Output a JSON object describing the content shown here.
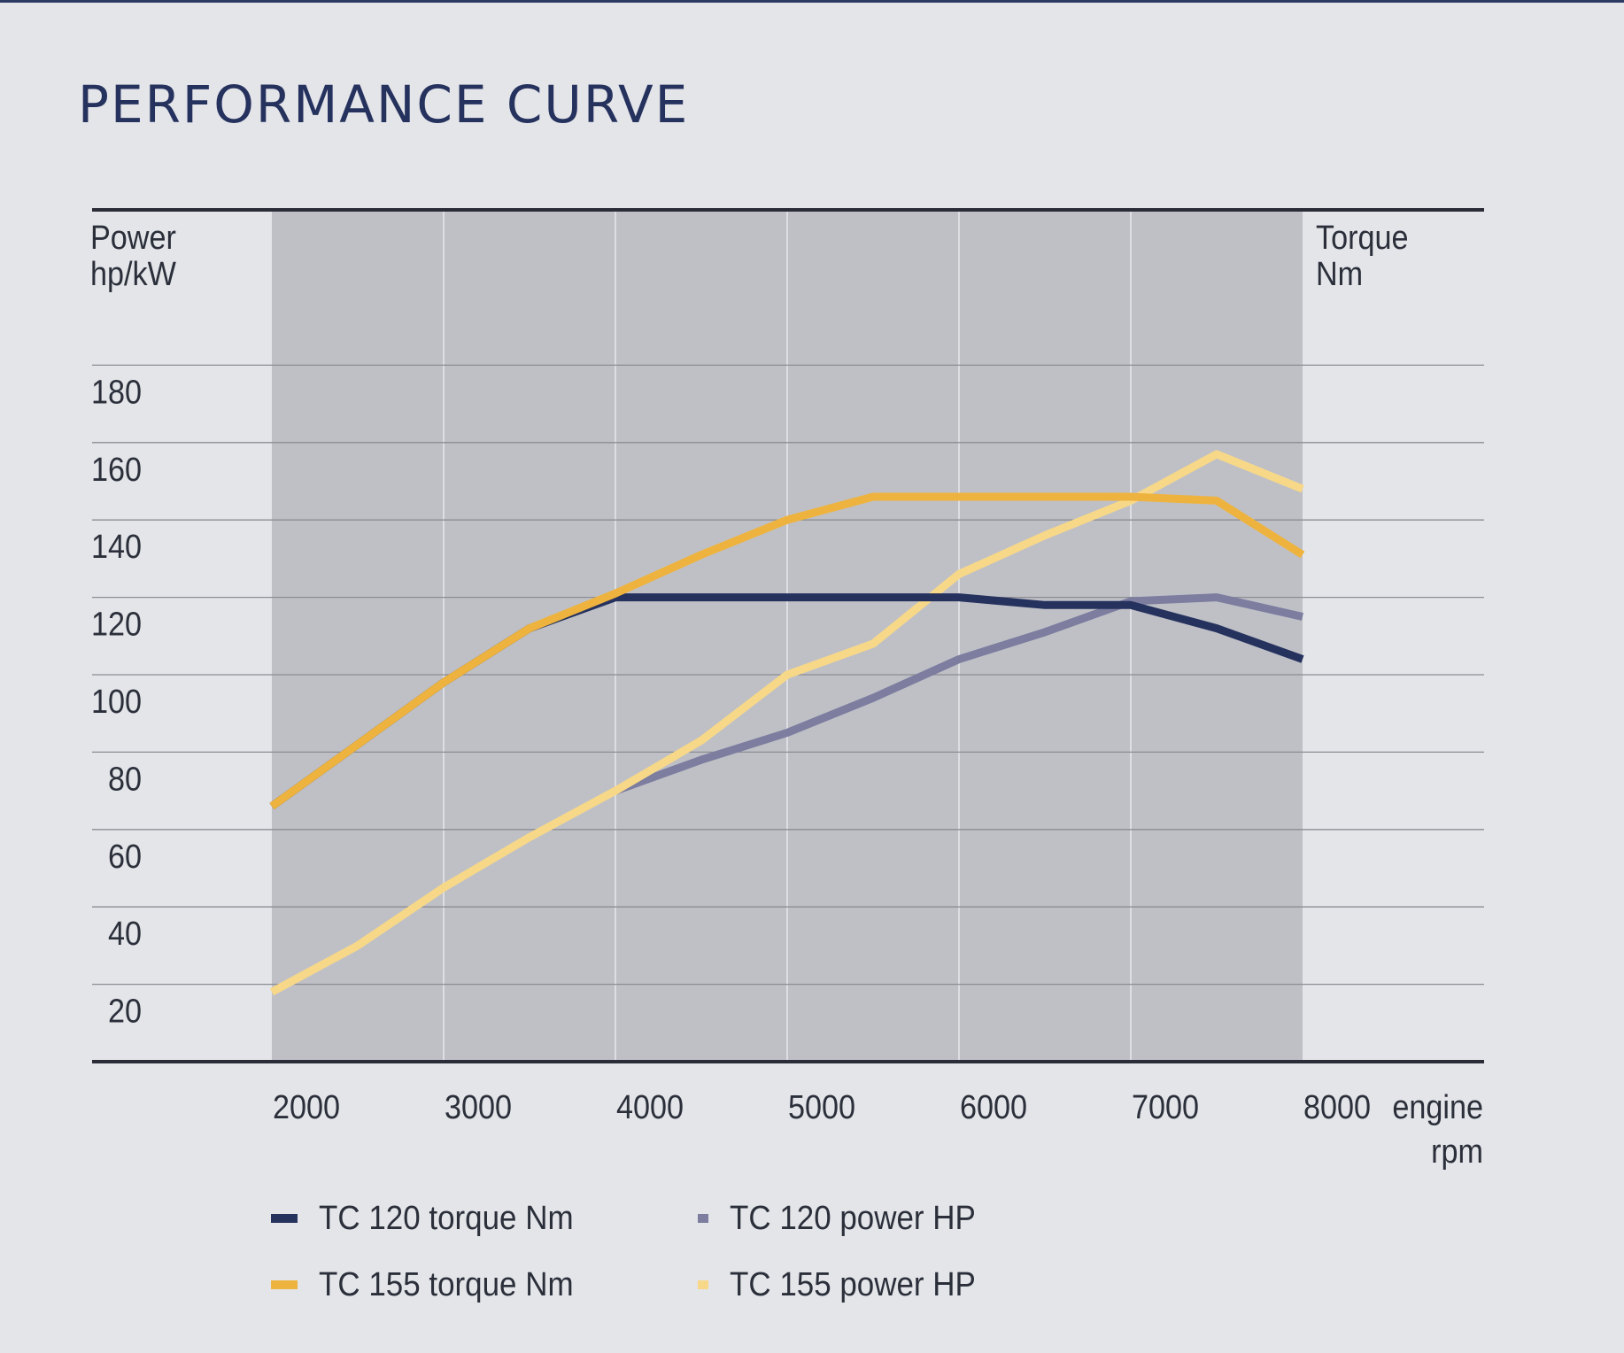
{
  "page": {
    "title": "PERFORMANCE CURVE"
  },
  "chart_data": {
    "type": "line",
    "title": "PERFORMANCE CURVE",
    "left_axis_label": [
      "Power",
      "hp/kW"
    ],
    "right_axis_label": [
      "Torque",
      "Nm"
    ],
    "x_axis_label": [
      "engine",
      "rpm"
    ],
    "x_ticks": [
      2000,
      3000,
      4000,
      5000,
      6000,
      7000,
      8000
    ],
    "y_ticks": [
      20,
      40,
      60,
      80,
      100,
      120,
      140,
      160,
      180
    ],
    "xlim": [
      2000,
      9000
    ],
    "ylim": [
      0,
      200
    ],
    "shaded_x_range": [
      2000,
      8000
    ],
    "grid": true,
    "legend_position": "bottom",
    "series": [
      {
        "name": "TC 120 torque Nm",
        "color": "#26325e",
        "points": [
          [
            2000,
            66
          ],
          [
            2500,
            82
          ],
          [
            3000,
            98
          ],
          [
            3500,
            112
          ],
          [
            4000,
            120
          ],
          [
            4500,
            120
          ],
          [
            5000,
            120
          ],
          [
            5500,
            120
          ],
          [
            6000,
            120
          ],
          [
            6500,
            118
          ],
          [
            7000,
            118
          ],
          [
            7500,
            112
          ],
          [
            8000,
            104
          ]
        ]
      },
      {
        "name": "TC 155 torque Nm",
        "color": "#eeb33e",
        "points": [
          [
            2000,
            66
          ],
          [
            2500,
            82
          ],
          [
            3000,
            98
          ],
          [
            3500,
            112
          ],
          [
            4000,
            121
          ],
          [
            4500,
            131
          ],
          [
            5000,
            140
          ],
          [
            5500,
            146
          ],
          [
            6000,
            146
          ],
          [
            6500,
            146
          ],
          [
            7000,
            146
          ],
          [
            7500,
            145
          ],
          [
            8000,
            131
          ]
        ]
      },
      {
        "name": "TC 120 power HP",
        "color": "#7c7d9f",
        "points": [
          [
            4000,
            70
          ],
          [
            4500,
            78
          ],
          [
            5000,
            85
          ],
          [
            5500,
            94
          ],
          [
            6000,
            104
          ],
          [
            6500,
            111
          ],
          [
            7000,
            119
          ],
          [
            7500,
            120
          ],
          [
            8000,
            115
          ]
        ]
      },
      {
        "name": "TC 155 power HP",
        "color": "#f7d888",
        "points": [
          [
            2000,
            18
          ],
          [
            2500,
            30
          ],
          [
            3000,
            45
          ],
          [
            3500,
            58
          ],
          [
            4000,
            70
          ],
          [
            4500,
            83
          ],
          [
            5000,
            100
          ],
          [
            5500,
            108
          ],
          [
            6000,
            126
          ],
          [
            6500,
            136
          ],
          [
            7000,
            145
          ],
          [
            7500,
            157
          ],
          [
            8000,
            148
          ]
        ]
      }
    ]
  }
}
